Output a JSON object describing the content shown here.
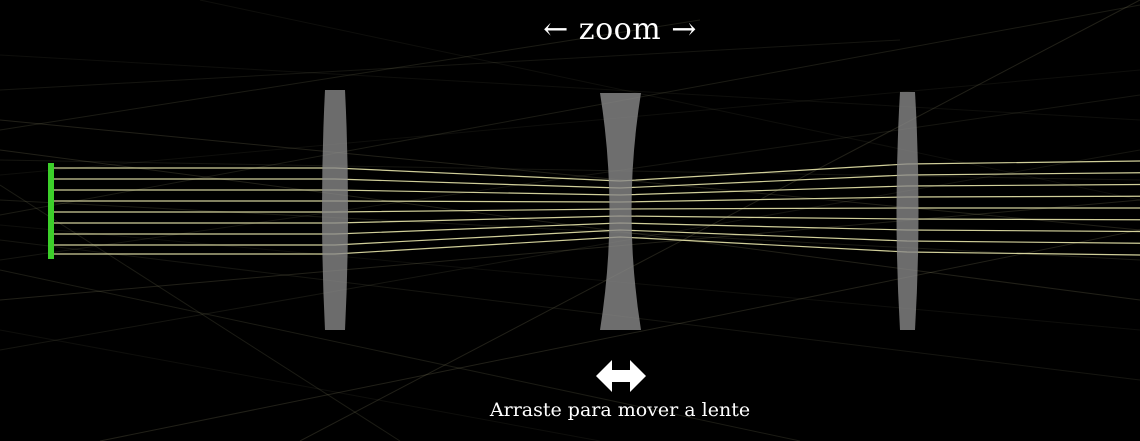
{
  "zoom_label": "← zoom →",
  "hint": "Arraste para mover a lente",
  "icons": {
    "drag": "double-arrow-horizontal-icon"
  },
  "colors": {
    "background": "#000000",
    "lens": "#8a8a8a",
    "ray": "#f4f2b4",
    "object": "#3ccf2a",
    "text": "#ffffff"
  }
}
